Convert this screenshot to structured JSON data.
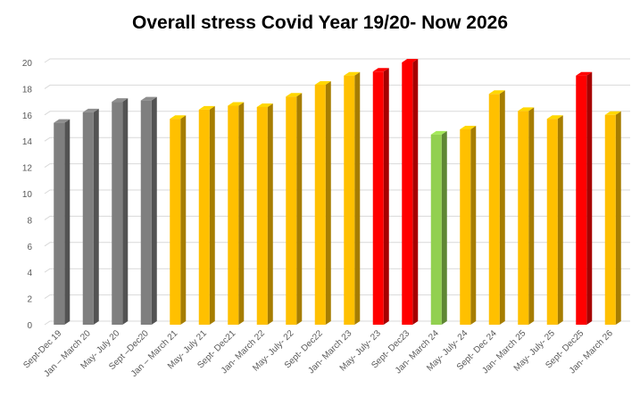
{
  "chart_data": {
    "type": "bar",
    "title": "Overall stress Covid Year 19/20- Now 2026",
    "xlabel": "",
    "ylabel": "",
    "ylim": [
      0,
      20
    ],
    "yticks": [
      0,
      2,
      4,
      6,
      8,
      10,
      12,
      14,
      16,
      18,
      20
    ],
    "grid": true,
    "legend": "none",
    "style": "3d-column",
    "categories": [
      "Sept-Dec 19",
      "Jan – March 20",
      "May- July 20",
      "Sept –Dec20",
      "Jan – March 21",
      "May- July 21",
      "Sept- Dec21",
      "Jan- March 22",
      "May- July- 22",
      "Sept- Dec22",
      "Jan- March 23",
      "May- July- 23",
      "Sept- Dec23",
      "Jan- March 24",
      "May- July- 24",
      "Sept- Dec 24",
      "Jan- March 25",
      "May- July- 25",
      "Sept- Dec25",
      "Jan- March 26"
    ],
    "values": [
      15.4,
      16.2,
      17.0,
      17.1,
      15.7,
      16.4,
      16.7,
      16.6,
      17.4,
      18.3,
      19.0,
      19.3,
      20.0,
      14.5,
      14.9,
      17.6,
      16.3,
      15.7,
      19.0,
      16.0
    ],
    "colors": [
      "#7f7f7f",
      "#7f7f7f",
      "#7f7f7f",
      "#7f7f7f",
      "#ffc000",
      "#ffc000",
      "#ffc000",
      "#ffc000",
      "#ffc000",
      "#ffc000",
      "#ffc000",
      "#ff0000",
      "#ff0000",
      "#92d050",
      "#ffc000",
      "#ffc000",
      "#ffc000",
      "#ffc000",
      "#ff0000",
      "#ffc000"
    ]
  }
}
